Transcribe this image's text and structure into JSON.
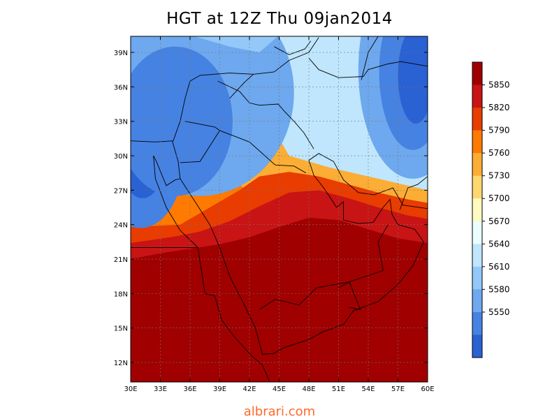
{
  "title": "HGT at 12Z Thu 09jan2014",
  "watermark": "albrari.com",
  "map": {
    "lon_range": [
      30,
      60
    ],
    "lat_range": [
      10,
      40
    ],
    "lon_ticks": [
      "30E",
      "33E",
      "36E",
      "39E",
      "42E",
      "45E",
      "48E",
      "51E",
      "54E",
      "57E",
      "60E"
    ],
    "lat_ticks": [
      "12N",
      "15N",
      "18N",
      "21N",
      "24N",
      "27N",
      "30N",
      "33N",
      "36N",
      "39N"
    ],
    "grid": true
  },
  "colorbar": {
    "levels": [
      5850,
      5820,
      5790,
      5760,
      5730,
      5700,
      5670,
      5640,
      5610,
      5580,
      5550
    ],
    "colors": [
      "#a00000",
      "#c81414",
      "#e83c00",
      "#ff7a00",
      "#fbad35",
      "#fed86f",
      "#fffac0",
      "#eafeff",
      "#bfe6fc",
      "#93c8f8",
      "#6ea8ee",
      "#4682e1",
      "#2a61d3"
    ]
  },
  "colors": {
    "contour_fills": [
      "#2a61d3",
      "#4682e1",
      "#6ea8ee",
      "#93c8f8",
      "#bfe6fc",
      "#eafeff",
      "#fffac0",
      "#fed86f",
      "#fbad35",
      "#ff7a00",
      "#e83c00",
      "#c81414",
      "#a00000"
    ]
  }
}
